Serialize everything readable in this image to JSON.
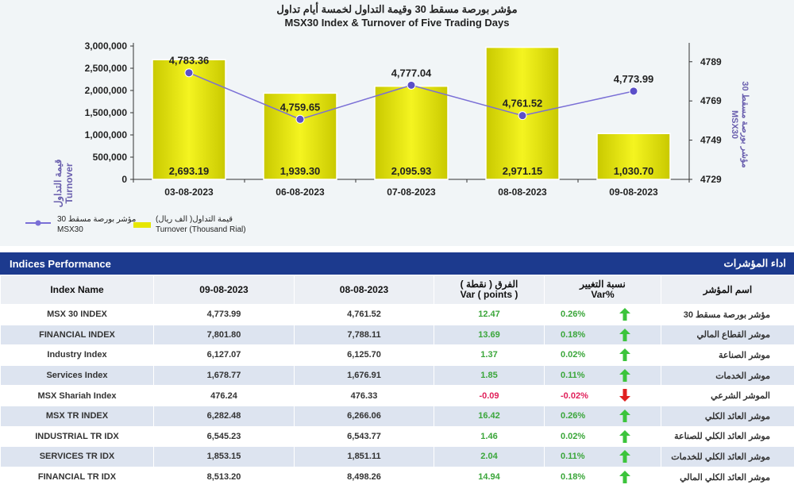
{
  "chart": {
    "title_ar": "مؤشر بورصة مسقط 30 وقيمة التداول لخمسة أيام تداول",
    "title_en": "MSX30 Index & Turnover of Five Trading Days",
    "left_axis_ar": "قيمة التداول",
    "left_axis_en": "Turnover",
    "right_axis_ar": "مؤشر بورصة مسقط 30",
    "right_axis_en": "MSX30",
    "legend_line_ar": "مؤشر بورصة مسقط 30",
    "legend_line_en": "MSX30",
    "legend_bar_ar": "قيمة التداول( الف ريال)",
    "legend_bar_en": "Turnover (Thousand Rial)",
    "bar_color": "#e6e600",
    "line_color": "#7a6fd6"
  },
  "chart_data": {
    "type": "bar+line",
    "title": "MSX30 Index & Turnover of Five Trading Days",
    "categories": [
      "03-08-2023",
      "06-08-2023",
      "07-08-2023",
      "08-08-2023",
      "09-08-2023"
    ],
    "series": [
      {
        "name": "Turnover (Thousand Rial)",
        "type": "bar",
        "axis": "left",
        "values": [
          2693.19,
          1939.3,
          2095.93,
          2971.15,
          1030.7
        ],
        "labels": [
          "2,693.19",
          "1,939.30",
          "2,095.93",
          "2,971.15",
          "1,030.70"
        ]
      },
      {
        "name": "MSX30",
        "type": "line",
        "axis": "right",
        "values": [
          4783.36,
          4759.65,
          4777.04,
          4761.52,
          4773.99
        ],
        "labels": [
          "4,783.36",
          "4,759.65",
          "4,777.04",
          "4,761.52",
          "4,773.99"
        ]
      }
    ],
    "left_ticks": [
      "0",
      "500,000",
      "1,000,000",
      "1,500,000",
      "2,000,000",
      "2,500,000",
      "3,000,000"
    ],
    "left_ylim": [
      0,
      3000000
    ],
    "right_ticks": [
      "4729",
      "4749",
      "4769",
      "4789"
    ],
    "right_ylim": [
      4729,
      4797
    ]
  },
  "table": {
    "header_en": "Indices Performance",
    "header_ar": "اداء المؤشرات",
    "columns": {
      "name": "Index Name",
      "d1": "09-08-2023",
      "d2": "08-08-2023",
      "var_ar": "الفرق ( نقطة )",
      "var_en": "Var ( points )",
      "pct_ar": "نسبة التغيير",
      "pct_en": "Var%",
      "name_ar": "اسم المؤشر"
    },
    "rows": [
      {
        "name": "MSX 30 INDEX",
        "d1": "4,773.99",
        "d2": "4,761.52",
        "var": "12.47",
        "pct": "0.26%",
        "dir": "up",
        "name_ar": "مؤشر بورصة مسقط 30"
      },
      {
        "name": "FINANCIAL INDEX",
        "d1": "7,801.80",
        "d2": "7,788.11",
        "var": "13.69",
        "pct": "0.18%",
        "dir": "up",
        "name_ar": "موشر القطاع المالي"
      },
      {
        "name": "Industry Index",
        "d1": "6,127.07",
        "d2": "6,125.70",
        "var": "1.37",
        "pct": "0.02%",
        "dir": "up",
        "name_ar": "موشر الصناعة"
      },
      {
        "name": "Services Index",
        "d1": "1,678.77",
        "d2": "1,676.91",
        "var": "1.85",
        "pct": "0.11%",
        "dir": "up",
        "name_ar": "موشر الخدمات"
      },
      {
        "name": "MSX Shariah Index",
        "d1": "476.24",
        "d2": "476.33",
        "var": "-0.09",
        "pct": "-0.02%",
        "dir": "down",
        "name_ar": "الموشر الشرعي"
      },
      {
        "name": "MSX TR INDEX",
        "d1": "6,282.48",
        "d2": "6,266.06",
        "var": "16.42",
        "pct": "0.26%",
        "dir": "up",
        "name_ar": "موشر العائد الكلي"
      },
      {
        "name": "INDUSTRIAL TR IDX",
        "d1": "6,545.23",
        "d2": "6,543.77",
        "var": "1.46",
        "pct": "0.02%",
        "dir": "up",
        "name_ar": "موشر العائد الكلي للصناعة"
      },
      {
        "name": "SERVICES TR IDX",
        "d1": "1,853.15",
        "d2": "1,851.11",
        "var": "2.04",
        "pct": "0.11%",
        "dir": "up",
        "name_ar": "موشر العائد الكلي للخدمات"
      },
      {
        "name": "FINANCIAL TR IDX",
        "d1": "8,513.20",
        "d2": "8,498.26",
        "var": "14.94",
        "pct": "0.18%",
        "dir": "up",
        "name_ar": "موشر العائد الكلي المالي"
      }
    ],
    "colors": {
      "positive": "#3aa63a",
      "negative": "#e0205a",
      "up_arrow": "#3cc43c",
      "down_arrow": "#e02020"
    }
  }
}
